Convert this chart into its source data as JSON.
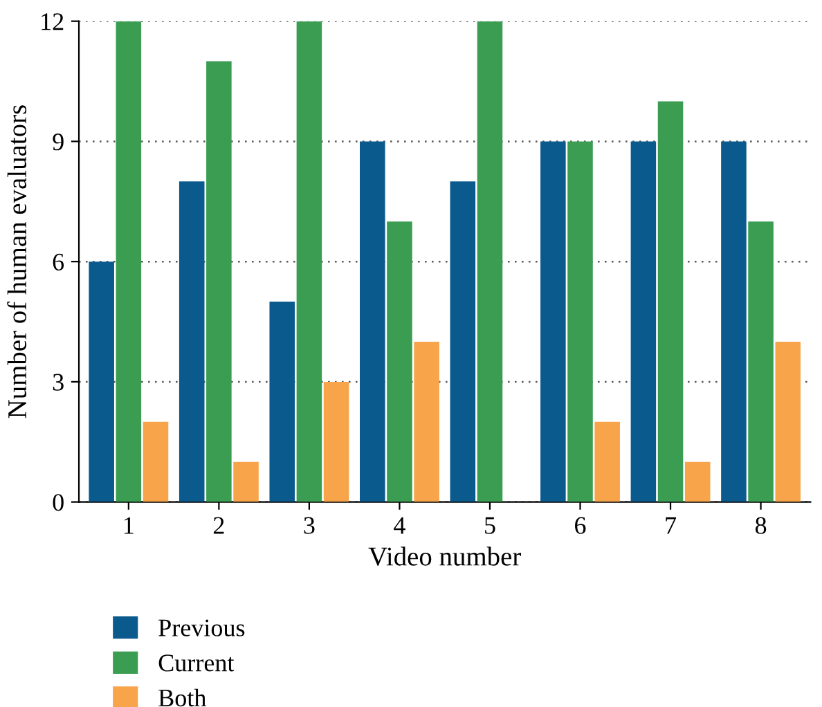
{
  "chart_data": {
    "type": "bar",
    "xlabel": "Video number",
    "ylabel": "Number of human evaluators",
    "categories": [
      "1",
      "2",
      "3",
      "4",
      "5",
      "6",
      "7",
      "8"
    ],
    "series": [
      {
        "name": "Previous",
        "color": "#0b5a8e",
        "values": [
          6,
          8,
          5,
          9,
          8,
          9,
          9,
          9
        ]
      },
      {
        "name": "Current",
        "color": "#3a9d52",
        "values": [
          12,
          11,
          12,
          7,
          12,
          9,
          10,
          7
        ]
      },
      {
        "name": "Both",
        "color": "#f7a44b",
        "values": [
          2,
          1,
          3,
          4,
          0,
          2,
          1,
          4
        ]
      }
    ],
    "ylim": [
      0,
      12
    ],
    "yticks": [
      0,
      3,
      6,
      9,
      12
    ],
    "grid": "y",
    "legend": "bottom"
  }
}
